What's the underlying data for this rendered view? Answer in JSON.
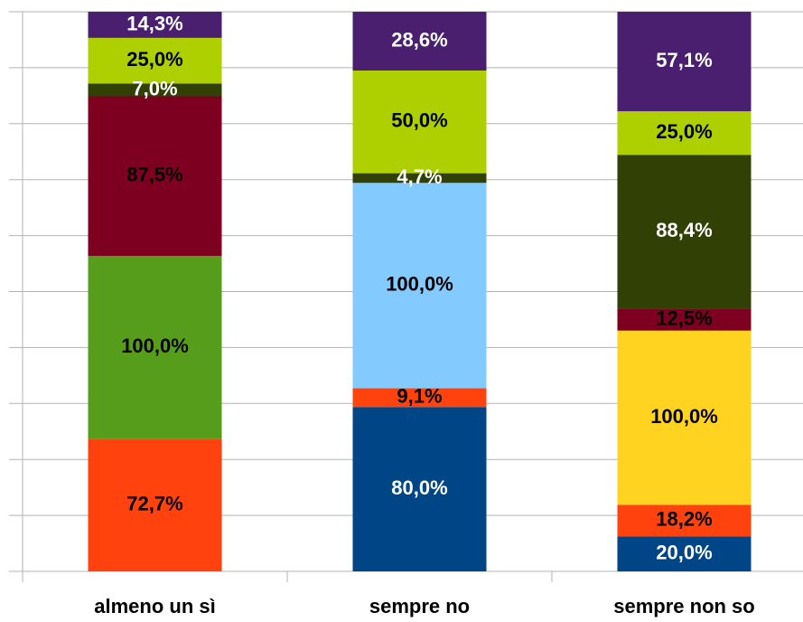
{
  "chart_data": {
    "type": "bar",
    "stacked": "percent",
    "categories": [
      "almeno un sì",
      "sempre no",
      "sempre non so"
    ],
    "series": [
      {
        "color": "#004586",
        "label_color": "#ffffff",
        "values": [
          null,
          80.0,
          20.0
        ],
        "value_labels": [
          null,
          "80,0%",
          "20,0%"
        ]
      },
      {
        "color": "#ff420e",
        "label_color": "#000000",
        "values": [
          72.7,
          9.1,
          18.2
        ],
        "value_labels": [
          "72,7%",
          "9,1%",
          "18,2%"
        ]
      },
      {
        "color": "#ffd320",
        "label_color": "#000000",
        "values": [
          null,
          null,
          100.0
        ],
        "value_labels": [
          null,
          null,
          "100,0%"
        ]
      },
      {
        "color": "#579d1c",
        "label_color": "#000000",
        "values": [
          100.0,
          null,
          null
        ],
        "value_labels": [
          "100,0%",
          null,
          null
        ]
      },
      {
        "color": "#83caff",
        "label_color": "#000000",
        "values": [
          null,
          100.0,
          null
        ],
        "value_labels": [
          null,
          "100,0%",
          null
        ]
      },
      {
        "color": "#7e0021",
        "label_color": "#000000",
        "values": [
          87.5,
          null,
          12.5
        ],
        "value_labels": [
          "87,5%",
          null,
          "12,5%"
        ]
      },
      {
        "color": "#314004",
        "label_color": "#ffffff",
        "values": [
          7.0,
          4.7,
          88.4
        ],
        "value_labels": [
          "7,0%",
          "4,7%",
          "88,4%"
        ]
      },
      {
        "color": "#aecf00",
        "label_color": "#000000",
        "values": [
          25.0,
          50.0,
          25.0
        ],
        "value_labels": [
          "25,0%",
          "50,0%",
          "25,0%"
        ]
      },
      {
        "color": "#4b1f6f",
        "label_color": "#ffffff",
        "values": [
          14.3,
          28.6,
          57.1
        ],
        "value_labels": [
          "14,3%",
          "28,6%",
          "57,1%"
        ]
      }
    ],
    "ylim": [
      0,
      100
    ],
    "yticks": [
      0,
      10,
      20,
      30,
      40,
      50,
      60,
      70,
      80,
      90,
      100
    ],
    "grid": true
  }
}
